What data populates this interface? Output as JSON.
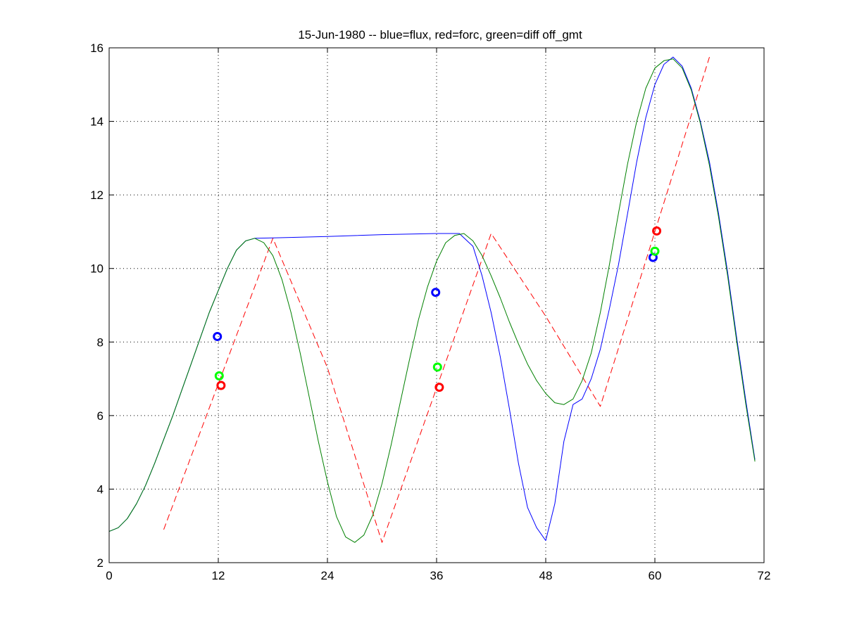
{
  "chart_data": {
    "type": "line",
    "title": "15-Jun-1980 -- blue=flux, red=forc, green=diff off_gmt",
    "xlim": [
      0,
      72
    ],
    "ylim": [
      2,
      16
    ],
    "xticks": [
      0,
      12,
      24,
      36,
      48,
      60,
      72
    ],
    "yticks": [
      2,
      4,
      6,
      8,
      10,
      12,
      14,
      16
    ],
    "grid": true,
    "series": [
      {
        "name": "flux",
        "color": "#0000ff",
        "style": "solid",
        "points": [
          [
            0,
            2.85
          ],
          [
            1,
            2.95
          ],
          [
            2,
            3.2
          ],
          [
            3,
            3.6
          ],
          [
            4,
            4.1
          ],
          [
            5,
            4.7
          ],
          [
            6,
            5.35
          ],
          [
            7,
            6.0
          ],
          [
            8,
            6.7
          ],
          [
            9,
            7.4
          ],
          [
            10,
            8.1
          ],
          [
            11,
            8.8
          ],
          [
            12,
            9.4
          ],
          [
            13,
            10.0
          ],
          [
            14,
            10.5
          ],
          [
            15,
            10.75
          ],
          [
            16,
            10.82
          ],
          [
            18,
            10.83
          ],
          [
            24,
            10.87
          ],
          [
            30,
            10.92
          ],
          [
            36,
            10.95
          ],
          [
            38.5,
            10.95
          ],
          [
            40,
            10.6
          ],
          [
            41,
            9.8
          ],
          [
            42,
            8.8
          ],
          [
            43,
            7.6
          ],
          [
            44,
            6.2
          ],
          [
            45,
            4.7
          ],
          [
            46,
            3.5
          ],
          [
            47,
            2.95
          ],
          [
            48,
            2.6
          ],
          [
            49,
            3.6
          ],
          [
            50,
            5.3
          ],
          [
            51,
            6.3
          ],
          [
            52,
            6.45
          ],
          [
            53,
            7.0
          ],
          [
            54,
            7.8
          ],
          [
            55,
            8.9
          ],
          [
            56,
            10.1
          ],
          [
            57,
            11.5
          ],
          [
            58,
            12.9
          ],
          [
            59,
            14.1
          ],
          [
            60,
            15.0
          ],
          [
            61,
            15.55
          ],
          [
            62,
            15.75
          ],
          [
            63,
            15.5
          ],
          [
            64,
            14.9
          ],
          [
            65,
            14.0
          ],
          [
            66,
            12.9
          ],
          [
            67,
            11.5
          ],
          [
            68,
            9.9
          ],
          [
            69,
            8.1
          ],
          [
            70,
            6.4
          ],
          [
            71,
            4.8
          ]
        ]
      },
      {
        "name": "forc",
        "color": "#ff0000",
        "style": "dashed",
        "points": [
          [
            6,
            2.9
          ],
          [
            18,
            10.82
          ],
          [
            24,
            7.3
          ],
          [
            30,
            2.55
          ],
          [
            42,
            10.95
          ],
          [
            48,
            8.7
          ],
          [
            54,
            6.25
          ],
          [
            66,
            15.75
          ]
        ]
      },
      {
        "name": "diff",
        "color": "#008000",
        "style": "solid",
        "points": [
          [
            0,
            2.85
          ],
          [
            1,
            2.95
          ],
          [
            2,
            3.2
          ],
          [
            3,
            3.6
          ],
          [
            4,
            4.1
          ],
          [
            5,
            4.7
          ],
          [
            6,
            5.35
          ],
          [
            7,
            6.0
          ],
          [
            8,
            6.7
          ],
          [
            9,
            7.4
          ],
          [
            10,
            8.1
          ],
          [
            11,
            8.8
          ],
          [
            12,
            9.4
          ],
          [
            13,
            10.0
          ],
          [
            14,
            10.5
          ],
          [
            15,
            10.75
          ],
          [
            16,
            10.82
          ],
          [
            17,
            10.7
          ],
          [
            18,
            10.35
          ],
          [
            19,
            9.7
          ],
          [
            20,
            8.8
          ],
          [
            21,
            7.7
          ],
          [
            22,
            6.5
          ],
          [
            23,
            5.3
          ],
          [
            24,
            4.2
          ],
          [
            25,
            3.25
          ],
          [
            26,
            2.7
          ],
          [
            27,
            2.55
          ],
          [
            28,
            2.75
          ],
          [
            29,
            3.3
          ],
          [
            30,
            4.15
          ],
          [
            31,
            5.2
          ],
          [
            32,
            6.35
          ],
          [
            33,
            7.5
          ],
          [
            34,
            8.6
          ],
          [
            35,
            9.5
          ],
          [
            36,
            10.2
          ],
          [
            37,
            10.7
          ],
          [
            38,
            10.9
          ],
          [
            39,
            10.95
          ],
          [
            40,
            10.75
          ],
          [
            41,
            10.35
          ],
          [
            42,
            9.8
          ],
          [
            43,
            9.2
          ],
          [
            44,
            8.55
          ],
          [
            45,
            7.95
          ],
          [
            46,
            7.4
          ],
          [
            47,
            6.95
          ],
          [
            48,
            6.6
          ],
          [
            49,
            6.35
          ],
          [
            50,
            6.3
          ],
          [
            51,
            6.45
          ],
          [
            52,
            6.95
          ],
          [
            53,
            7.7
          ],
          [
            54,
            8.8
          ],
          [
            55,
            10.1
          ],
          [
            56,
            11.5
          ],
          [
            57,
            12.85
          ],
          [
            58,
            14.0
          ],
          [
            59,
            14.9
          ],
          [
            60,
            15.45
          ],
          [
            61,
            15.65
          ],
          [
            62,
            15.7
          ],
          [
            63,
            15.45
          ],
          [
            64,
            14.85
          ],
          [
            65,
            13.95
          ],
          [
            66,
            12.8
          ],
          [
            67,
            11.4
          ],
          [
            68,
            9.8
          ],
          [
            69,
            8.0
          ],
          [
            70,
            6.3
          ],
          [
            71,
            4.75
          ]
        ]
      }
    ],
    "markers": [
      {
        "series": "flux",
        "color": "#0000ff",
        "points": [
          [
            11.9,
            8.15
          ],
          [
            35.9,
            9.35
          ],
          [
            59.8,
            10.3
          ]
        ]
      },
      {
        "series": "diff",
        "color": "#00ff00",
        "points": [
          [
            12.1,
            7.08
          ],
          [
            36.1,
            7.32
          ],
          [
            60.0,
            10.47
          ]
        ]
      },
      {
        "series": "forc",
        "color": "#ff0000",
        "points": [
          [
            12.3,
            6.82
          ],
          [
            36.3,
            6.77
          ],
          [
            60.2,
            11.02
          ]
        ]
      }
    ]
  }
}
